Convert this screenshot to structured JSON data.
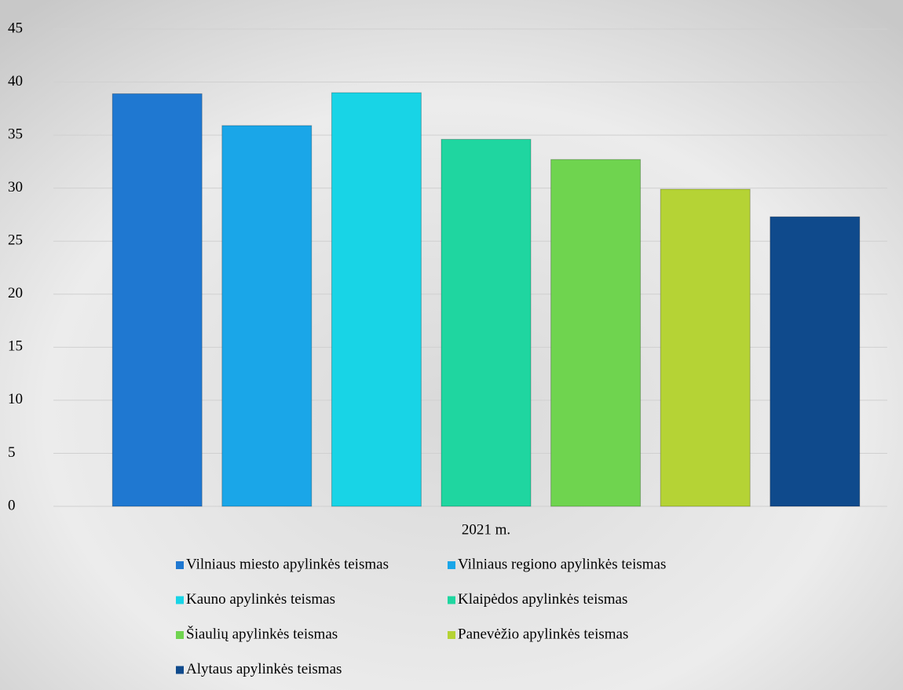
{
  "chart_data": {
    "type": "bar",
    "categories": [
      "2021 m."
    ],
    "series": [
      {
        "name": "Vilniaus miesto apylinkės teismas",
        "color": "#1f78d1",
        "values": [
          38.9
        ]
      },
      {
        "name": "Vilniaus regiono apylinkės teismas",
        "color": "#1aa6e8",
        "values": [
          35.9
        ]
      },
      {
        "name": "Kauno apylinkės teismas",
        "color": "#18d4e6",
        "values": [
          39.0
        ]
      },
      {
        "name": "Klaipėdos apylinkės teismas",
        "color": "#1fd6a0",
        "values": [
          34.6
        ]
      },
      {
        "name": "Šiaulių apylinkės teismas",
        "color": "#6fd44f",
        "values": [
          32.7
        ]
      },
      {
        "name": "Panevėžio apylinkės teismas",
        "color": "#b5d335",
        "values": [
          29.9
        ]
      },
      {
        "name": "Alytaus apylinkės teismas",
        "color": "#0f4a8c",
        "values": [
          27.3
        ]
      }
    ],
    "ylim": [
      0,
      45
    ],
    "yticks": [
      0,
      5,
      10,
      15,
      20,
      25,
      30,
      35,
      40,
      45
    ],
    "grid": true
  }
}
